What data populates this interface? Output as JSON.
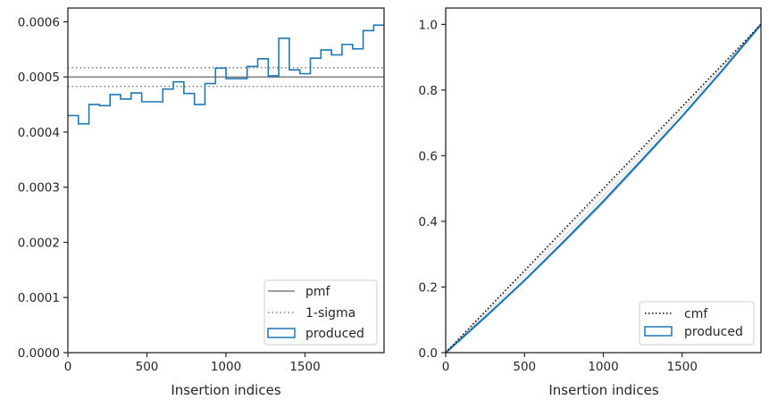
{
  "chart_data": [
    {
      "type": "step",
      "xlabel": "Insertion indices",
      "ylabel": "",
      "xlim": [
        0,
        2000
      ],
      "ylim": [
        0,
        0.000625
      ],
      "xticks": [
        0,
        500,
        1000,
        1500
      ],
      "yticks": [
        0.0,
        0.0001,
        0.0002,
        0.0003,
        0.0004,
        0.0005,
        0.0006
      ],
      "xtick_labels": [
        "0",
        "500",
        "1000",
        "1500"
      ],
      "ytick_labels": [
        "0.0000",
        "0.0001",
        "0.0002",
        "0.0003",
        "0.0004",
        "0.0005",
        "0.0006"
      ],
      "legend_position": "lower-right",
      "pmf": 0.0005,
      "sigma_upper": 0.000517,
      "sigma_lower": 0.000483,
      "bin_width": 66.7,
      "produced_values": [
        0.00043,
        0.000415,
        0.00045,
        0.000448,
        0.000468,
        0.00046,
        0.000471,
        0.000455,
        0.000455,
        0.000478,
        0.000491,
        0.00047,
        0.00045,
        0.000488,
        0.000516,
        0.000497,
        0.000497,
        0.000519,
        0.000533,
        0.000502,
        0.00057,
        0.000513,
        0.000506,
        0.000534,
        0.000549,
        0.00054,
        0.000559,
        0.000551,
        0.000584,
        0.000594
      ],
      "legend": {
        "pmf": "pmf",
        "sigma": "1-sigma",
        "produced": "produced"
      },
      "colors": {
        "produced": "#1f77b4",
        "pmf": "#7f7f7f",
        "sigma": "#7f7f7f"
      }
    },
    {
      "type": "line",
      "xlabel": "Insertion indices",
      "ylabel": "",
      "xlim": [
        0,
        2000
      ],
      "ylim": [
        0,
        1.05
      ],
      "xticks": [
        0,
        500,
        1000,
        1500
      ],
      "yticks": [
        0.0,
        0.2,
        0.4,
        0.6,
        0.8,
        1.0
      ],
      "xtick_labels": [
        "0",
        "500",
        "1000",
        "1500"
      ],
      "ytick_labels": [
        "0.0",
        "0.2",
        "0.4",
        "0.6",
        "0.8",
        "1.0"
      ],
      "legend_position": "lower-right",
      "cmf": {
        "x": [
          0,
          2000
        ],
        "y": [
          0,
          1
        ]
      },
      "produced": {
        "x": [
          0,
          250,
          500,
          750,
          1000,
          1250,
          1500,
          1750,
          2000
        ],
        "y": [
          0,
          0.108,
          0.22,
          0.339,
          0.461,
          0.59,
          0.72,
          0.857,
          1.0
        ]
      },
      "legend": {
        "cmf": "cmf",
        "produced": "produced"
      },
      "colors": {
        "produced": "#1f77b4",
        "cmf": "#000000",
        "realizations": "#d9d9d9"
      }
    }
  ]
}
